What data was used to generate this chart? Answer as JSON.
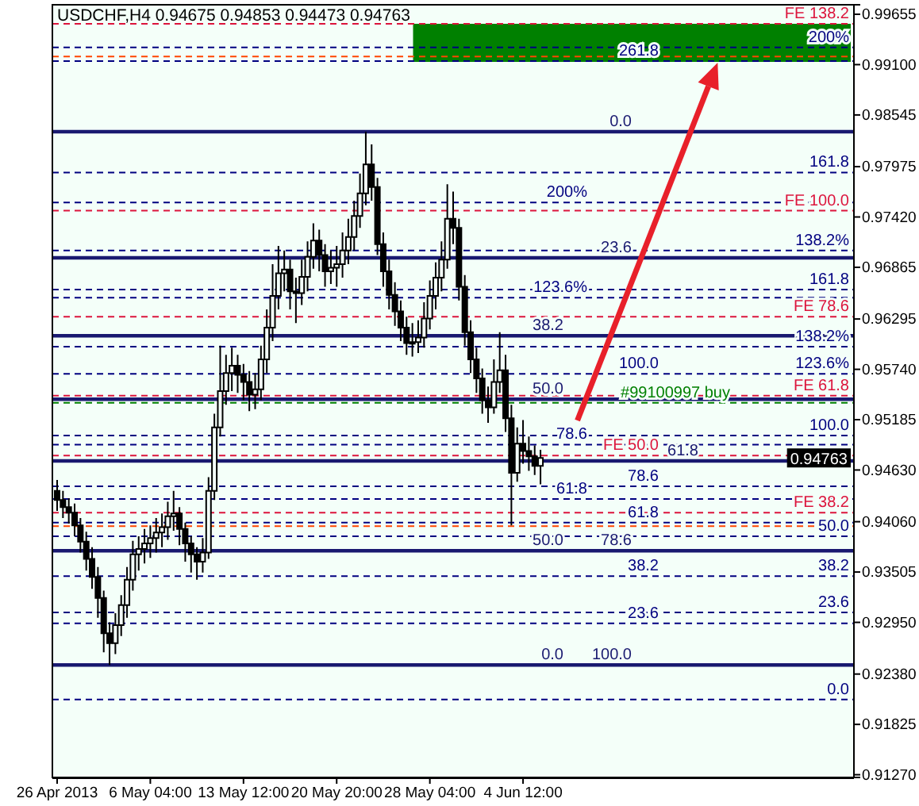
{
  "chart_data": {
    "type": "candlestick",
    "title": "USDCHF,H4  0.94675 0.94853 0.94473 0.94763",
    "color": "#000000",
    "categories": [
      "26 Apr 2013",
      null,
      null,
      null,
      null,
      null,
      null,
      null,
      null,
      null,
      null,
      null,
      null,
      null,
      null,
      null,
      "6 May 04:00",
      null,
      null,
      null,
      null,
      null,
      null,
      null,
      null,
      null,
      null,
      null,
      null,
      null,
      null,
      null,
      "13 May 12:00",
      null,
      null,
      null,
      null,
      null,
      null,
      null,
      null,
      null,
      null,
      null,
      null,
      null,
      null,
      null,
      "20 May 20:00",
      null,
      null,
      null,
      null,
      null,
      null,
      null,
      null,
      null,
      null,
      null,
      null,
      null,
      null,
      null,
      "28 May 04:00",
      null,
      null,
      null,
      null,
      null,
      null,
      null,
      null,
      null,
      null,
      null,
      null,
      null,
      null,
      null,
      "4 Jun 12:00",
      null,
      null,
      null,
      null,
      null,
      null,
      null,
      null,
      null,
      null,
      null,
      null,
      null,
      null,
      null,
      null,
      null,
      null,
      null,
      null,
      null,
      null,
      null,
      null,
      null,
      null,
      null,
      null,
      null,
      null,
      null,
      null,
      null,
      null,
      null,
      null,
      null,
      null,
      null,
      null,
      null,
      null,
      null,
      null,
      null,
      null,
      null,
      null,
      null,
      null,
      null,
      null,
      null,
      null,
      null,
      null
    ],
    "ohlc": [
      [
        0.944,
        0.9452,
        0.9418,
        0.943
      ],
      [
        0.943,
        0.944,
        0.941,
        0.9422
      ],
      [
        0.9422,
        0.9432,
        0.9404,
        0.9416
      ],
      [
        0.9416,
        0.9426,
        0.939,
        0.9402
      ],
      [
        0.9402,
        0.941,
        0.9372,
        0.9384
      ],
      [
        0.9384,
        0.9395,
        0.9352,
        0.9365
      ],
      [
        0.9365,
        0.9378,
        0.9332,
        0.9345
      ],
      [
        0.9345,
        0.9356,
        0.93,
        0.9322
      ],
      [
        0.9322,
        0.933,
        0.9262,
        0.9283
      ],
      [
        0.9283,
        0.9295,
        0.9248,
        0.9272
      ],
      [
        0.9272,
        0.9305,
        0.926,
        0.9292
      ],
      [
        0.9292,
        0.9325,
        0.928,
        0.9314
      ],
      [
        0.9314,
        0.9356,
        0.93,
        0.9342
      ],
      [
        0.9342,
        0.9385,
        0.933,
        0.937
      ],
      [
        0.937,
        0.939,
        0.9352,
        0.9376
      ],
      [
        0.9376,
        0.9398,
        0.936,
        0.9382
      ],
      [
        0.9382,
        0.9402,
        0.9366,
        0.9388
      ],
      [
        0.9388,
        0.941,
        0.9372,
        0.9394
      ],
      [
        0.9394,
        0.9415,
        0.9378,
        0.94
      ],
      [
        0.94,
        0.9428,
        0.9386,
        0.9412
      ],
      [
        0.9412,
        0.944,
        0.9396,
        0.9415
      ],
      [
        0.9415,
        0.9422,
        0.938,
        0.9398
      ],
      [
        0.9398,
        0.9405,
        0.9362,
        0.9382
      ],
      [
        0.9382,
        0.939,
        0.935,
        0.937
      ],
      [
        0.937,
        0.9378,
        0.9342,
        0.9362
      ],
      [
        0.9362,
        0.9388,
        0.935,
        0.9372
      ],
      [
        0.9372,
        0.9455,
        0.9365,
        0.944
      ],
      [
        0.944,
        0.9525,
        0.943,
        0.951
      ],
      [
        0.951,
        0.96,
        0.95,
        0.955
      ],
      [
        0.955,
        0.959,
        0.9535,
        0.957
      ],
      [
        0.957,
        0.9598,
        0.955,
        0.9578
      ],
      [
        0.9578,
        0.959,
        0.9548,
        0.9568
      ],
      [
        0.9568,
        0.958,
        0.954,
        0.956
      ],
      [
        0.956,
        0.9572,
        0.9528,
        0.9546
      ],
      [
        0.9546,
        0.957,
        0.953,
        0.9552
      ],
      [
        0.9552,
        0.96,
        0.954,
        0.9585
      ],
      [
        0.9585,
        0.964,
        0.957,
        0.962
      ],
      [
        0.962,
        0.969,
        0.9605,
        0.9655
      ],
      [
        0.9655,
        0.971,
        0.964,
        0.968
      ],
      [
        0.968,
        0.9705,
        0.966,
        0.9684
      ],
      [
        0.9684,
        0.9695,
        0.964,
        0.966
      ],
      [
        0.966,
        0.9675,
        0.9625,
        0.9658
      ],
      [
        0.9658,
        0.9695,
        0.9645,
        0.9676
      ],
      [
        0.9676,
        0.9715,
        0.966,
        0.9698
      ],
      [
        0.9698,
        0.9735,
        0.9685,
        0.9716
      ],
      [
        0.9716,
        0.9728,
        0.9682,
        0.97
      ],
      [
        0.97,
        0.9712,
        0.9665,
        0.9682
      ],
      [
        0.9682,
        0.9705,
        0.9668,
        0.9686
      ],
      [
        0.9686,
        0.971,
        0.9665,
        0.969
      ],
      [
        0.969,
        0.9725,
        0.9675,
        0.9705
      ],
      [
        0.9705,
        0.974,
        0.969,
        0.972
      ],
      [
        0.972,
        0.976,
        0.9705,
        0.9743
      ],
      [
        0.9743,
        0.979,
        0.973,
        0.9768
      ],
      [
        0.9768,
        0.9836,
        0.9755,
        0.98
      ],
      [
        0.98,
        0.9822,
        0.976,
        0.9775
      ],
      [
        0.9775,
        0.9785,
        0.97,
        0.9712
      ],
      [
        0.9712,
        0.9725,
        0.9665,
        0.9682
      ],
      [
        0.9682,
        0.9695,
        0.964,
        0.9656
      ],
      [
        0.9656,
        0.967,
        0.9622,
        0.9638
      ],
      [
        0.9638,
        0.965,
        0.9605,
        0.962
      ],
      [
        0.962,
        0.9632,
        0.959,
        0.9603
      ],
      [
        0.9603,
        0.9625,
        0.9588,
        0.9604
      ],
      [
        0.9604,
        0.9628,
        0.9592,
        0.9609
      ],
      [
        0.9609,
        0.9648,
        0.9598,
        0.963
      ],
      [
        0.963,
        0.9672,
        0.9618,
        0.9655
      ],
      [
        0.9655,
        0.9692,
        0.964,
        0.9675
      ],
      [
        0.9675,
        0.9715,
        0.966,
        0.9695
      ],
      [
        0.9695,
        0.9778,
        0.9685,
        0.974
      ],
      [
        0.974,
        0.977,
        0.9712,
        0.973
      ],
      [
        0.973,
        0.974,
        0.965,
        0.9665
      ],
      [
        0.9665,
        0.9678,
        0.96,
        0.9615
      ],
      [
        0.9615,
        0.9628,
        0.957,
        0.9585
      ],
      [
        0.9585,
        0.9598,
        0.9548,
        0.9564
      ],
      [
        0.9564,
        0.9575,
        0.9525,
        0.954
      ],
      [
        0.954,
        0.9555,
        0.9515,
        0.9532
      ],
      [
        0.9532,
        0.9585,
        0.9525,
        0.956
      ],
      [
        0.956,
        0.9615,
        0.9548,
        0.9573
      ],
      [
        0.9573,
        0.959,
        0.9505,
        0.952
      ],
      [
        0.952,
        0.9535,
        0.9402,
        0.946
      ],
      [
        0.946,
        0.951,
        0.945,
        0.9492
      ],
      [
        0.9492,
        0.9518,
        0.947,
        0.9484
      ],
      [
        0.9484,
        0.95,
        0.9462,
        0.9478
      ],
      [
        0.9478,
        0.949,
        0.94575,
        0.94675
      ],
      [
        0.94675,
        0.94853,
        0.94473,
        0.94763
      ],
      null,
      null,
      null,
      null,
      null,
      null,
      null,
      null,
      null,
      null,
      null,
      null,
      null,
      null,
      null,
      null,
      null,
      null,
      null,
      null,
      null,
      null,
      null,
      null,
      null,
      null,
      null,
      null,
      null,
      null,
      null,
      null,
      null,
      null,
      null,
      null,
      null,
      null,
      null,
      null,
      null,
      null,
      null,
      null,
      null,
      null,
      null,
      null,
      null,
      null,
      null,
      null,
      null
    ],
    "ylim": [
      0.9124,
      0.9976
    ],
    "yticks": [
      0.99655,
      {
        "value": 0.991,
        "label": "0.99100"
      },
      0.98545,
      0.97975,
      {
        "value": 0.9742,
        "label": "0.97420"
      },
      0.96865,
      0.96295,
      {
        "value": 0.9574,
        "label": "0.95740"
      },
      0.95185,
      {
        "value": 0.9463,
        "label": "0.94630"
      },
      {
        "value": 0.9406,
        "label": "0.94060"
      },
      0.93505,
      {
        "value": 0.9295,
        "label": "0.92950"
      },
      {
        "value": 0.9238,
        "label": "0.92380"
      },
      0.91825,
      {
        "value": 0.9127,
        "label": "0.91270"
      }
    ],
    "bands": [
      {
        "axis": "y",
        "from": 0.9913,
        "to": 0.9955,
        "color": "#008000"
      }
    ],
    "ref_lines": [
      {
        "axis": "y",
        "value": 0.9955,
        "color": "#dc143c",
        "line_style": "dashed"
      },
      {
        "axis": "y",
        "value": 0.9749,
        "color": "#dc143c",
        "line_style": "dashed"
      },
      {
        "axis": "y",
        "value": 0.9632,
        "color": "#dc143c",
        "line_style": "dashed"
      },
      {
        "axis": "y",
        "value": 0.9545,
        "color": "#dc143c",
        "line_style": "dashed"
      },
      {
        "axis": "y",
        "value": 0.9479,
        "color": "#dc143c",
        "line_style": "dashed"
      },
      {
        "axis": "y",
        "value": 0.9416,
        "color": "#dc143c",
        "line_style": "dashed"
      },
      {
        "axis": "y",
        "value": 0.9836,
        "color": "#191970",
        "line_style": "solid"
      },
      {
        "axis": "y",
        "value": 0.9697,
        "color": "#191970",
        "line_style": "solid"
      },
      {
        "axis": "y",
        "value": 0.9611,
        "color": "#191970",
        "line_style": "solid"
      },
      {
        "axis": "y",
        "value": 0.9541,
        "color": "#191970",
        "line_style": "solid"
      },
      {
        "axis": "y",
        "value": 0.9473,
        "color": "#191970",
        "line_style": "solid"
      },
      {
        "axis": "y",
        "value": 0.9374,
        "color": "#191970",
        "line_style": "solid"
      },
      {
        "axis": "y",
        "value": 0.9248,
        "color": "#191970",
        "line_style": "solid"
      },
      {
        "axis": "y",
        "value": 0.9929,
        "color": "#000080",
        "line_style": "dashed"
      },
      {
        "axis": "y",
        "value": 0.9914,
        "color": "#000080",
        "line_style": "dashed"
      },
      {
        "axis": "y",
        "value": 0.9791,
        "color": "#000080",
        "line_style": "dashed"
      },
      {
        "axis": "y",
        "value": 0.9758,
        "color": "#000080",
        "line_style": "dashed"
      },
      {
        "axis": "y",
        "value": 0.9705,
        "color": "#000080",
        "line_style": "dashed"
      },
      {
        "axis": "y",
        "value": 0.9662,
        "color": "#000080",
        "line_style": "dashed"
      },
      {
        "axis": "y",
        "value": 0.9653,
        "color": "#000080",
        "line_style": "dashed"
      },
      {
        "axis": "y",
        "value": 0.9599,
        "color": "#000080",
        "line_style": "dashed"
      },
      {
        "axis": "y",
        "value": 0.9569,
        "color": "#000080",
        "line_style": "dashed"
      },
      {
        "axis": "y",
        "value": 0.9501,
        "color": "#000080",
        "line_style": "dashed"
      },
      {
        "axis": "y",
        "value": 0.9491,
        "color": "#000080",
        "line_style": "dashed"
      },
      {
        "axis": "y",
        "value": 0.9445,
        "color": "#000080",
        "line_style": "dashed"
      },
      {
        "axis": "y",
        "value": 0.9431,
        "color": "#000080",
        "line_style": "dashed"
      },
      {
        "axis": "y",
        "value": 0.9405,
        "color": "#000080",
        "line_style": "dashed"
      },
      {
        "axis": "y",
        "value": 0.939,
        "color": "#000080",
        "line_style": "dashed"
      },
      {
        "axis": "y",
        "value": 0.9346,
        "color": "#000080",
        "line_style": "dashed"
      },
      {
        "axis": "y",
        "value": 0.9306,
        "color": "#000080",
        "line_style": "dashed"
      },
      {
        "axis": "y",
        "value": 0.9294,
        "color": "#000080",
        "line_style": "dashed"
      },
      {
        "axis": "y",
        "value": 0.921,
        "color": "#000080",
        "line_style": "dashed"
      },
      {
        "axis": "y",
        "value": 0.9537,
        "color": "#008000",
        "line_style": "dashed"
      },
      {
        "axis": "y",
        "value": 0.9919,
        "color": "#ff4500",
        "line_style": "dashed"
      },
      {
        "axis": "y",
        "value": 0.9401,
        "color": "#ff4500",
        "line_style": "dashed"
      }
    ],
    "annotations": [
      {
        "text": "0.94763",
        "y": 0.94763
      },
      {
        "text": "FE 138.2",
        "y": 0.9955
      },
      {
        "text": "FE 100.0",
        "y": 0.9749
      },
      {
        "text": "FE 78.6",
        "y": 0.9632
      },
      {
        "text": "FE 61.8",
        "y": 0.9545
      },
      {
        "text": "FE 50.0",
        "y": 0.9479
      },
      {
        "text": "FE 38.2",
        "y": 0.9416
      },
      {
        "text": "0.0",
        "y": 0.9836
      },
      {
        "text": "23.6",
        "y": 0.9697
      },
      {
        "text": "38.2",
        "y": 0.9611
      },
      {
        "text": "50.0",
        "y": 0.9541
      },
      {
        "text": "61.8",
        "y": 0.9473
      },
      {
        "text": "78.6",
        "y": 0.9374
      },
      {
        "text": "100.0",
        "y": 0.9248
      },
      {
        "text": "200%",
        "y": 0.9929
      },
      {
        "text": "261.8",
        "y": 0.9914
      },
      {
        "text": "161.8",
        "y": 0.9791
      },
      {
        "text": "200%",
        "y": 0.9758
      },
      {
        "text": "138.2%",
        "y": 0.9705
      },
      {
        "text": "161.8",
        "y": 0.9662
      },
      {
        "text": "123.6%",
        "y": 0.9653
      },
      {
        "text": "138.2%",
        "y": 0.9599
      },
      {
        "text": "123.6%",
        "y": 0.9569
      },
      {
        "text": "100.0",
        "y": 0.9569
      },
      {
        "text": "100.0",
        "y": 0.9501
      },
      {
        "text": "78.6",
        "y": 0.9491
      },
      {
        "text": "78.6",
        "y": 0.9445
      },
      {
        "text": "61.8",
        "y": 0.9431
      },
      {
        "text": "61.8",
        "y": 0.9405
      },
      {
        "text": "50.0",
        "y": 0.939
      },
      {
        "text": "50.0",
        "y": 0.9374
      },
      {
        "text": "38.2",
        "y": 0.9346
      },
      {
        "text": "38.2",
        "y": 0.9346
      },
      {
        "text": "23.6",
        "y": 0.9306
      },
      {
        "text": "23.6",
        "y": 0.9294
      },
      {
        "text": "0.0",
        "y": 0.9248
      },
      {
        "text": "0.0",
        "y": 0.921
      },
      {
        "text": "#99100997 buy",
        "y": 0.9537
      }
    ]
  }
}
